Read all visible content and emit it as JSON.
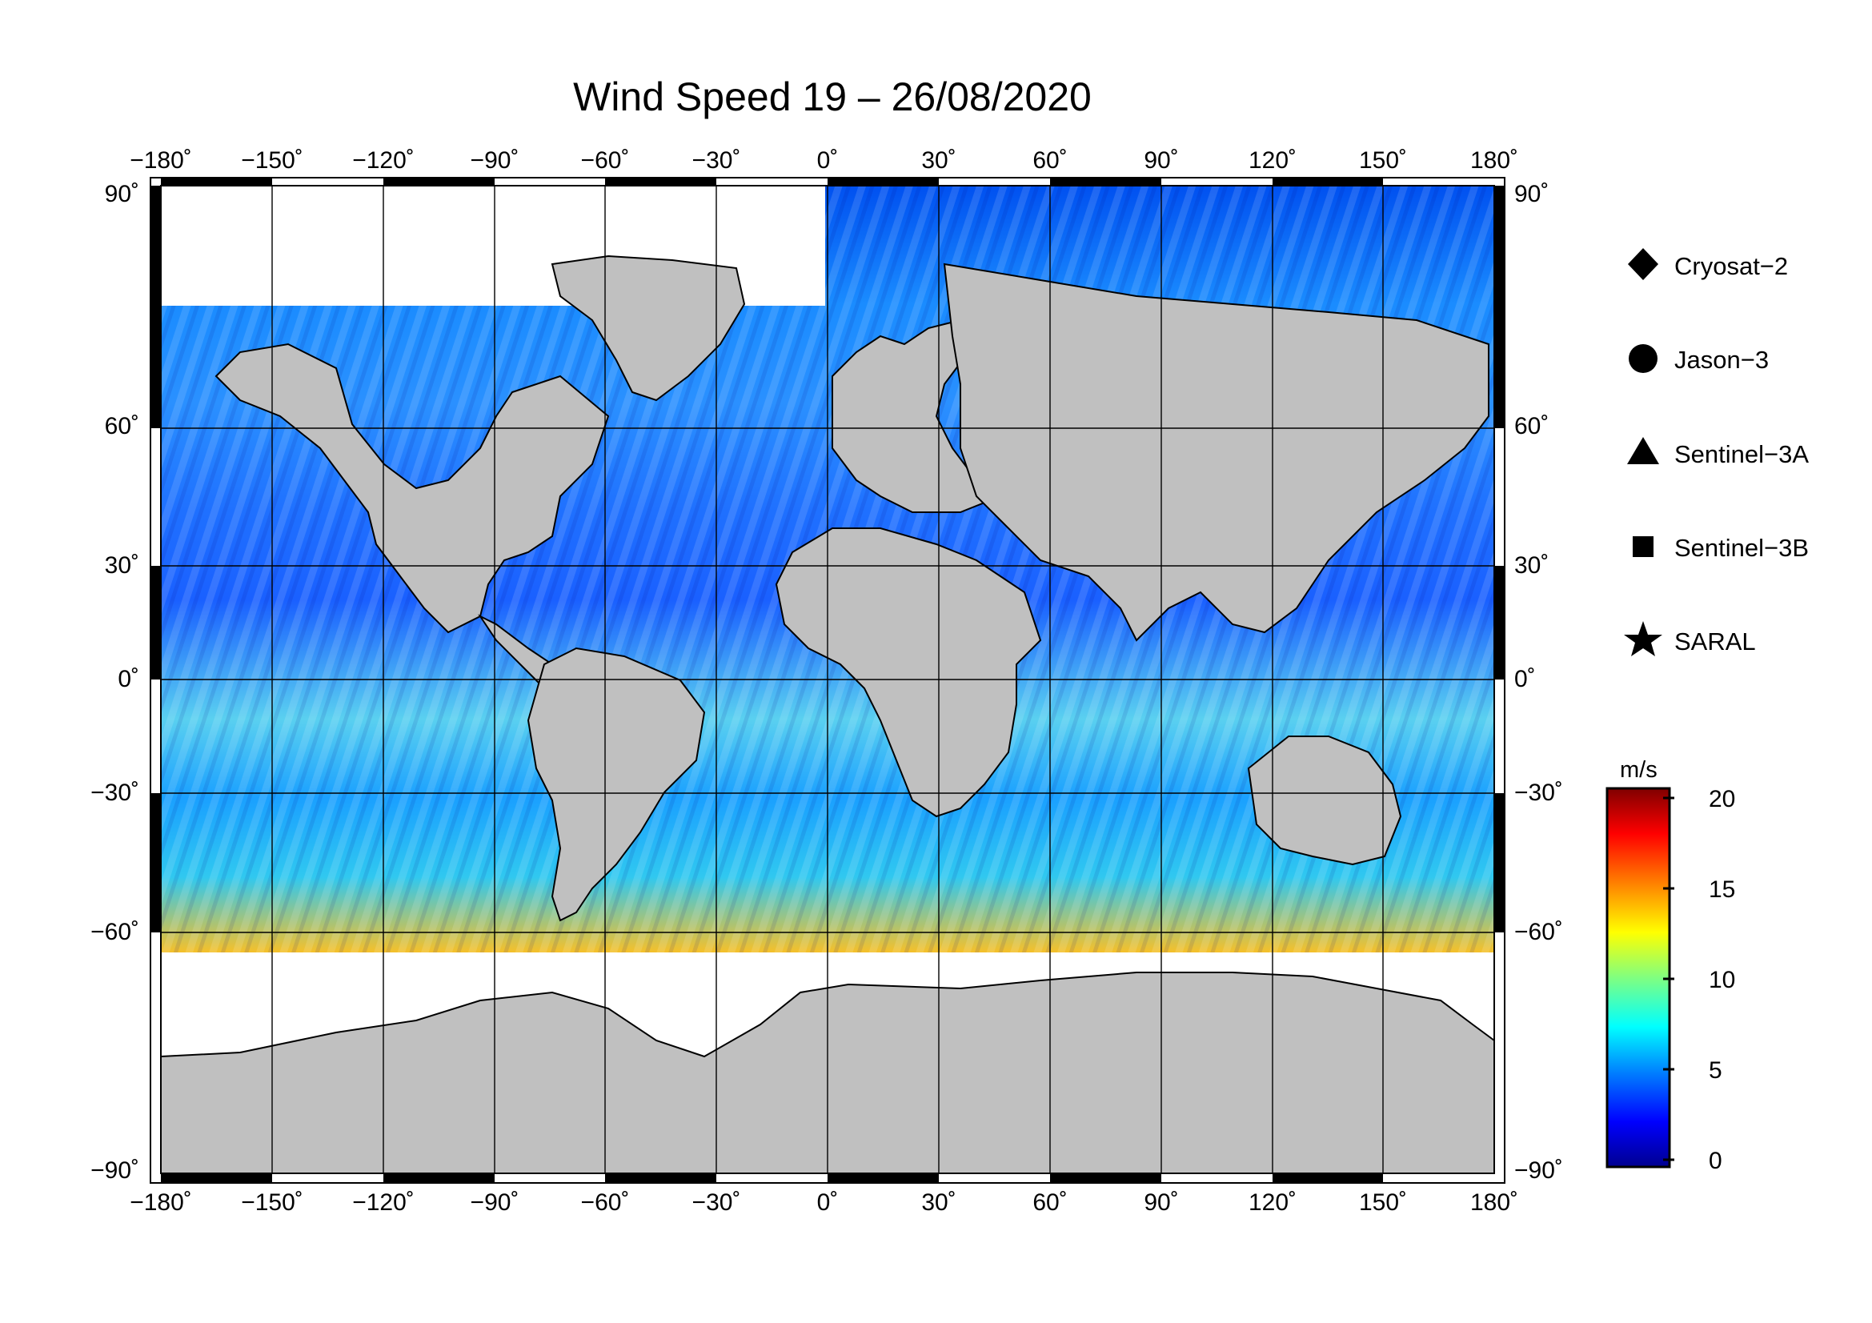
{
  "title": "Wind Speed 19 – 26/08/2020",
  "lon_ticks": [
    "−180˚",
    "−150˚",
    "−120˚",
    "−90˚",
    "−60˚",
    "−30˚",
    "0˚",
    "30˚",
    "60˚",
    "90˚",
    "120˚",
    "150˚",
    "180˚"
  ],
  "lat_ticks_left": [
    "90˚",
    "60˚",
    "30˚",
    "0˚",
    "−30˚",
    "−60˚",
    "−90˚"
  ],
  "lat_ticks_right": [
    "90˚",
    "60˚",
    "30˚",
    "0˚",
    "−30˚",
    "−60˚",
    "−90˚"
  ],
  "legend": [
    {
      "label": "Cryosat−2",
      "icon": "diamond-icon"
    },
    {
      "label": "Jason−3",
      "icon": "circle-icon"
    },
    {
      "label": "Sentinel−3A",
      "icon": "triangle-icon"
    },
    {
      "label": "Sentinel−3B",
      "icon": "square-icon"
    },
    {
      "label": "SARAL",
      "icon": "star-icon"
    }
  ],
  "colorbar": {
    "unit": "m/s",
    "ticks": [
      "20",
      "15",
      "10",
      "5",
      "0"
    ],
    "min": 0,
    "max": 20,
    "colors": [
      "#00008f",
      "#0000ff",
      "#0080ff",
      "#00ffff",
      "#80ff80",
      "#ffff00",
      "#ff8000",
      "#ff0000",
      "#800000"
    ]
  },
  "map": {
    "land_color": "#c0c0c0",
    "ice_color": "#ffffff",
    "frame": "black-white-alternating"
  }
}
